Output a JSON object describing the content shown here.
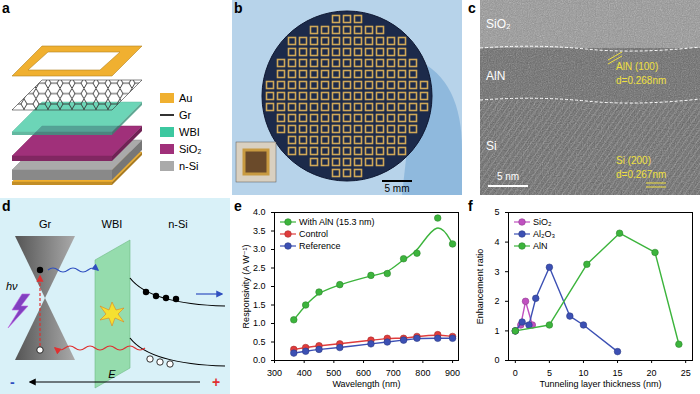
{
  "panels": {
    "a": {
      "label": "a",
      "legend": [
        {
          "name": "Au",
          "color": "#f0b030",
          "marker": "square"
        },
        {
          "name": "Gr",
          "color": "#333333",
          "marker": "line"
        },
        {
          "name": "WBI",
          "color": "#3cc8a0",
          "marker": "square"
        },
        {
          "name": "SiO₂",
          "color": "#a0307a",
          "marker": "square"
        },
        {
          "name": "n-Si",
          "color": "#aaaaaa",
          "marker": "square"
        }
      ]
    },
    "b": {
      "label": "b",
      "scale_bar": "5 mm"
    },
    "c": {
      "label": "c",
      "layers": [
        "SiO₂",
        "AlN",
        "Si"
      ],
      "annotations": [
        [
          "AlN (100)",
          "d=0.268nm"
        ],
        [
          "Si (200)",
          "d=0.267nm"
        ]
      ],
      "scale_bar": "5 nm"
    },
    "d": {
      "label": "d",
      "regions": [
        "Gr",
        "WBI",
        "n-Si"
      ],
      "photon": "hν",
      "field": "E",
      "signs": [
        "-",
        "+"
      ]
    }
  },
  "chart_data": [
    {
      "type": "line",
      "title": "e",
      "xlabel": "Wavelength (nm)",
      "ylabel": "Responsivity (A W⁻¹)",
      "x": [
        365,
        405,
        450,
        520,
        625,
        680,
        735,
        780,
        850,
        900
      ],
      "series": [
        {
          "name": "With AlN (15.3 nm)",
          "color": "#3cb43c",
          "marker": "circle",
          "line_style": "smooth",
          "values": [
            1.1,
            1.5,
            1.85,
            2.05,
            2.3,
            2.35,
            2.75,
            2.9,
            3.85,
            3.15
          ]
        },
        {
          "name": "Control",
          "color": "#e03c3c",
          "marker": "circle",
          "line_style": "smooth",
          "values": [
            0.3,
            0.35,
            0.4,
            0.45,
            0.55,
            0.6,
            0.6,
            0.65,
            0.7,
            0.65
          ]
        },
        {
          "name": "Reference",
          "color": "#3c50b4",
          "marker": "circle",
          "line_style": "smooth",
          "values": [
            0.2,
            0.25,
            0.3,
            0.35,
            0.45,
            0.5,
            0.55,
            0.6,
            0.6,
            0.6
          ]
        }
      ],
      "xlim": [
        300,
        920
      ],
      "xticks": [
        300,
        400,
        500,
        600,
        700,
        800,
        900
      ],
      "ylim": [
        0,
        4
      ],
      "yticks": [
        {
          "value": 0,
          "label": "0.0"
        },
        0.5,
        {
          "value": 1,
          "label": "1.0"
        },
        1.5,
        {
          "value": 2,
          "label": "2.0"
        },
        2.5,
        {
          "value": 3,
          "label": "3.0"
        },
        3.5,
        {
          "value": 4,
          "label": "4.0"
        }
      ],
      "legend": "top-left",
      "grid": false
    },
    {
      "type": "line",
      "title": "f",
      "xlabel": "Tunneling layer thickness (nm)",
      "ylabel": "Enhancement ratio",
      "series": [
        {
          "name": "SiO₂",
          "color": "#c050c0",
          "marker": "circle",
          "line_style": "solid",
          "x": [
            0,
            0.8,
            1.5,
            2.5
          ],
          "values": [
            1.0,
            1.2,
            2.0,
            1.2
          ]
        },
        {
          "name": "Al₂O₃",
          "color": "#3c50b4",
          "marker": "circle",
          "line_style": "solid",
          "x": [
            0,
            1,
            2,
            3,
            5,
            8,
            10,
            15
          ],
          "values": [
            1.0,
            1.3,
            1.2,
            2.1,
            3.15,
            1.5,
            1.2,
            0.3
          ]
        },
        {
          "name": "AlN",
          "color": "#3cb43c",
          "marker": "circle",
          "line_style": "solid",
          "x": [
            0,
            5,
            10.5,
            15.3,
            20.5,
            24
          ],
          "values": [
            1.0,
            1.2,
            3.25,
            4.3,
            3.65,
            0.55
          ]
        }
      ],
      "xlim": [
        -1,
        26
      ],
      "xticks": [
        0,
        5,
        10,
        15,
        20,
        25
      ],
      "ylim": [
        0,
        5
      ],
      "yticks": [
        0,
        1,
        2,
        3,
        4,
        5
      ],
      "legend": "top-left",
      "grid": false
    }
  ]
}
